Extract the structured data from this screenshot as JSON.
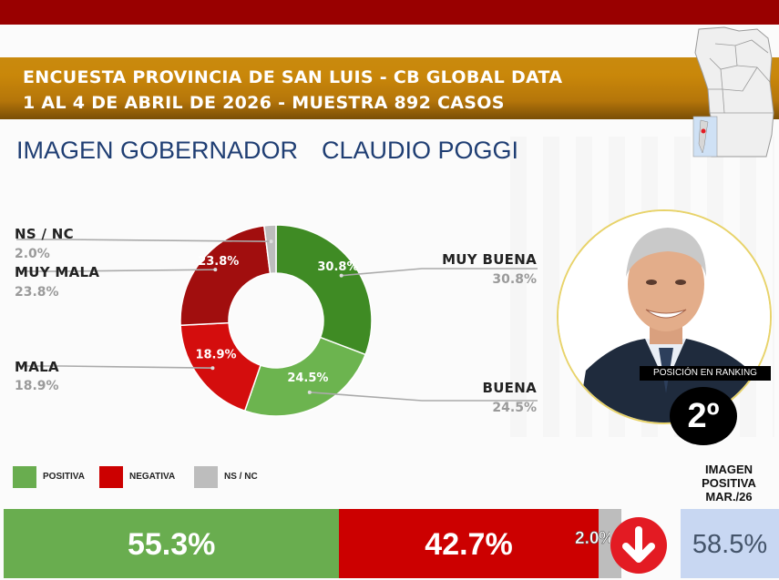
{
  "header": {
    "line1": "ENCUESTA PROVINCIA DE SAN LUIS - CB GLOBAL DATA",
    "line2": "1 AL 4 DE ABRIL DE 2026 - MUESTRA 892 CASOS"
  },
  "headline": {
    "left": "IMAGEN GOBERNADOR",
    "right": "CLAUDIO POGGI"
  },
  "colors": {
    "muy_buena": "#3f8b24",
    "buena": "#6cb44f",
    "mala": "#d40d0d",
    "muy_mala": "#a10e0e",
    "ns_nc": "#bdbdbd",
    "positiva": "#69ad4f",
    "negativa": "#cc0000",
    "accent_title": "#1f3e73"
  },
  "chart_data": {
    "type": "donut",
    "series": [
      {
        "name": "MUY BUENA",
        "value": 30.8,
        "label": "30.8%"
      },
      {
        "name": "BUENA",
        "value": 24.5,
        "label": "24.5%"
      },
      {
        "name": "MALA",
        "value": 18.9,
        "label": "18.9%"
      },
      {
        "name": "MUY MALA",
        "value": 23.8,
        "label": "23.8%"
      },
      {
        "name": "NS / NC",
        "value": 2.0,
        "label": "2.0%"
      }
    ]
  },
  "ranking": {
    "label": "POSICIÓN EN RANKING",
    "value": "2º"
  },
  "legend": [
    {
      "label": "POSITIVA",
      "color": "#69ad4f"
    },
    {
      "label": "NEGATIVA",
      "color": "#cc0000"
    },
    {
      "label": "NS / NC",
      "color": "#bdbdbd"
    }
  ],
  "summary": {
    "positiva": {
      "value": 55.3,
      "label": "55.3%"
    },
    "negativa": {
      "value": 42.7,
      "label": "42.7%"
    },
    "ns_nc": {
      "value": 2.0,
      "label": "2.0%"
    },
    "trend_icon": "arrow-down-icon",
    "previous": {
      "title": "IMAGEN POSITIVA MAR./26",
      "value": "58.5%"
    }
  }
}
